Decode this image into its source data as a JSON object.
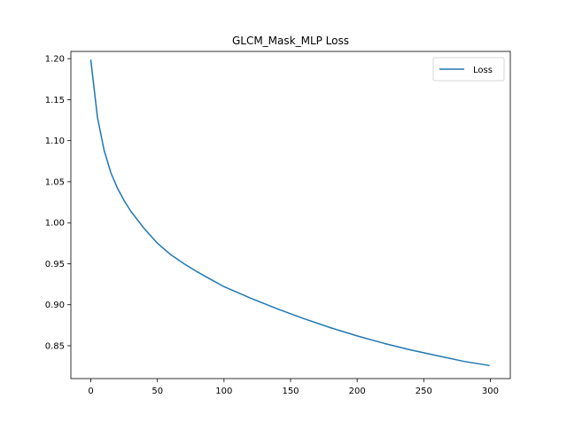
{
  "chart_data": {
    "type": "line",
    "title": "GLCM_Mask_MLP Loss",
    "xlabel": "",
    "ylabel": "",
    "xlim": [
      -15,
      315
    ],
    "ylim": [
      0.81,
      1.2088
    ],
    "xticks": [
      0,
      50,
      100,
      150,
      200,
      250,
      300
    ],
    "yticks": [
      0.85,
      0.9,
      0.95,
      1.0,
      1.05,
      1.1,
      1.15,
      1.2
    ],
    "xtick_labels": [
      "0",
      "50",
      "100",
      "150",
      "200",
      "250",
      "300"
    ],
    "ytick_labels": [
      "0.85",
      "0.90",
      "0.95",
      "1.00",
      "1.05",
      "1.10",
      "1.15",
      "1.20"
    ],
    "grid": false,
    "legend_position": "top-right",
    "series": [
      {
        "name": "Loss",
        "color": "#1f77b4",
        "x": [
          0,
          5,
          10,
          15,
          20,
          25,
          30,
          40,
          50,
          60,
          70,
          80,
          90,
          100,
          120,
          140,
          160,
          180,
          200,
          220,
          240,
          260,
          280,
          299
        ],
        "y": [
          1.198,
          1.128,
          1.088,
          1.061,
          1.042,
          1.027,
          1.014,
          0.993,
          0.975,
          0.961,
          0.95,
          0.94,
          0.931,
          0.922,
          0.908,
          0.895,
          0.883,
          0.872,
          0.862,
          0.853,
          0.845,
          0.838,
          0.831,
          0.826
        ]
      }
    ]
  }
}
